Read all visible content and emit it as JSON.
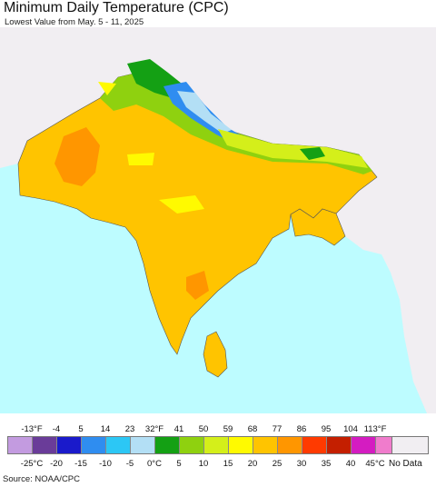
{
  "header": {
    "title": "Minimum Daily Temperature (CPC)",
    "subtitle": "Lowest Value from May. 5 - 11, 2025"
  },
  "legend": {
    "fahrenheit_ticks": [
      "-13°F",
      "-4",
      "5",
      "14",
      "23",
      "32°F",
      "41",
      "50",
      "59",
      "68",
      "77",
      "86",
      "95",
      "104",
      "113°F"
    ],
    "celsius_ticks": [
      "-25°C",
      "-20",
      "-15",
      "-10",
      "-5",
      "0°C",
      "5",
      "10",
      "15",
      "20",
      "25",
      "30",
      "35",
      "40",
      "45°C"
    ],
    "colors": [
      "#c39be0",
      "#6a3c99",
      "#1a1acb",
      "#2f8df0",
      "#2cc7f5",
      "#b3dff5",
      "#14a014",
      "#8fd10f",
      "#d4ef1a",
      "#fffa00",
      "#ffc400",
      "#ff9600",
      "#ff3a00",
      "#c41f00",
      "#d41cc1",
      "#f07ccc"
    ],
    "no_data_label": "No Data",
    "no_data_color": "#f1eef2"
  },
  "map": {
    "ocean_color": "#bdfcff",
    "land_nodata_color": "#f1eef2",
    "dominant_color": "#ffc400",
    "region_colors": {
      "cool_north": "#8fd10f",
      "cold_himalaya": "#2f8df0",
      "freezing": "#14a014",
      "mild": "#fffa00",
      "warm": "#ff9600"
    }
  },
  "footer": {
    "source": "Source: NOAA/CPC"
  }
}
